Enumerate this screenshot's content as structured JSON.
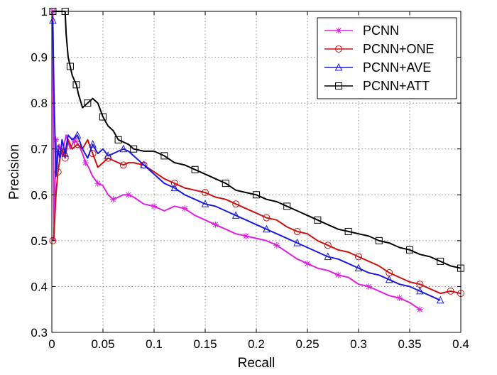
{
  "chart_data": {
    "type": "line",
    "title": "",
    "xlabel": "Recall",
    "ylabel": "Precision",
    "xlim": [
      0,
      0.4
    ],
    "ylim": [
      0.3,
      1.0
    ],
    "xticks": [
      0,
      0.05,
      0.1,
      0.15,
      0.2,
      0.25,
      0.3,
      0.35,
      0.4
    ],
    "xtick_labels": [
      "0",
      "0.05",
      "0.1",
      "0.15",
      "0.2",
      "0.25",
      "0.3",
      "0.35",
      "0.4"
    ],
    "yticks": [
      0.3,
      0.4,
      0.5,
      0.6,
      0.7,
      0.8,
      0.9,
      1.0
    ],
    "ytick_labels": [
      "0.3",
      "0.4",
      "0.5",
      "0.6",
      "0.7",
      "0.8",
      "0.9",
      "1"
    ],
    "grid": true,
    "legend_position": "top-right",
    "series": [
      {
        "name": "PCNN",
        "color": "#e020e0",
        "marker": "star",
        "points": [
          [
            0.001,
            1.0
          ],
          [
            0.002,
            0.5
          ],
          [
            0.003,
            0.6
          ],
          [
            0.004,
            0.72
          ],
          [
            0.005,
            0.66
          ],
          [
            0.007,
            0.71
          ],
          [
            0.01,
            0.69
          ],
          [
            0.014,
            0.73
          ],
          [
            0.018,
            0.7
          ],
          [
            0.022,
            0.72
          ],
          [
            0.026,
            0.71
          ],
          [
            0.03,
            0.69
          ],
          [
            0.033,
            0.67
          ],
          [
            0.036,
            0.66
          ],
          [
            0.04,
            0.64
          ],
          [
            0.045,
            0.625
          ],
          [
            0.05,
            0.62
          ],
          [
            0.055,
            0.6
          ],
          [
            0.06,
            0.59
          ],
          [
            0.065,
            0.595
          ],
          [
            0.07,
            0.6
          ],
          [
            0.075,
            0.6
          ],
          [
            0.08,
            0.595
          ],
          [
            0.09,
            0.58
          ],
          [
            0.1,
            0.575
          ],
          [
            0.11,
            0.565
          ],
          [
            0.12,
            0.575
          ],
          [
            0.13,
            0.57
          ],
          [
            0.14,
            0.555
          ],
          [
            0.15,
            0.545
          ],
          [
            0.16,
            0.535
          ],
          [
            0.17,
            0.525
          ],
          [
            0.18,
            0.515
          ],
          [
            0.19,
            0.51
          ],
          [
            0.2,
            0.505
          ],
          [
            0.21,
            0.5
          ],
          [
            0.22,
            0.49
          ],
          [
            0.23,
            0.475
          ],
          [
            0.24,
            0.46
          ],
          [
            0.25,
            0.45
          ],
          [
            0.26,
            0.44
          ],
          [
            0.27,
            0.435
          ],
          [
            0.28,
            0.425
          ],
          [
            0.29,
            0.42
          ],
          [
            0.3,
            0.405
          ],
          [
            0.31,
            0.4
          ],
          [
            0.32,
            0.39
          ],
          [
            0.33,
            0.38
          ],
          [
            0.34,
            0.375
          ],
          [
            0.35,
            0.365
          ],
          [
            0.36,
            0.35
          ]
        ]
      },
      {
        "name": "PCNN+ONE",
        "color": "#cc1111",
        "marker": "circle",
        "points": [
          [
            0.001,
            0.5
          ],
          [
            0.002,
            0.51
          ],
          [
            0.004,
            0.6
          ],
          [
            0.006,
            0.65
          ],
          [
            0.008,
            0.68
          ],
          [
            0.01,
            0.7
          ],
          [
            0.013,
            0.68
          ],
          [
            0.016,
            0.72
          ],
          [
            0.02,
            0.7
          ],
          [
            0.025,
            0.71
          ],
          [
            0.03,
            0.7
          ],
          [
            0.035,
            0.72
          ],
          [
            0.04,
            0.69
          ],
          [
            0.045,
            0.66
          ],
          [
            0.05,
            0.67
          ],
          [
            0.055,
            0.68
          ],
          [
            0.06,
            0.675
          ],
          [
            0.065,
            0.67
          ],
          [
            0.07,
            0.665
          ],
          [
            0.075,
            0.67
          ],
          [
            0.08,
            0.67
          ],
          [
            0.09,
            0.665
          ],
          [
            0.1,
            0.65
          ],
          [
            0.11,
            0.635
          ],
          [
            0.12,
            0.625
          ],
          [
            0.13,
            0.615
          ],
          [
            0.14,
            0.61
          ],
          [
            0.15,
            0.605
          ],
          [
            0.16,
            0.595
          ],
          [
            0.17,
            0.59
          ],
          [
            0.18,
            0.58
          ],
          [
            0.19,
            0.57
          ],
          [
            0.2,
            0.56
          ],
          [
            0.21,
            0.55
          ],
          [
            0.22,
            0.545
          ],
          [
            0.23,
            0.53
          ],
          [
            0.24,
            0.52
          ],
          [
            0.25,
            0.515
          ],
          [
            0.26,
            0.5
          ],
          [
            0.27,
            0.49
          ],
          [
            0.28,
            0.48
          ],
          [
            0.29,
            0.475
          ],
          [
            0.3,
            0.465
          ],
          [
            0.31,
            0.455
          ],
          [
            0.32,
            0.445
          ],
          [
            0.33,
            0.43
          ],
          [
            0.34,
            0.42
          ],
          [
            0.35,
            0.41
          ],
          [
            0.36,
            0.405
          ],
          [
            0.37,
            0.395
          ],
          [
            0.38,
            0.385
          ],
          [
            0.39,
            0.39
          ],
          [
            0.4,
            0.385
          ]
        ]
      },
      {
        "name": "PCNN+AVE",
        "color": "#1a1ae0",
        "marker": "triangle",
        "points": [
          [
            0.001,
            0.98
          ],
          [
            0.002,
            0.83
          ],
          [
            0.004,
            0.64
          ],
          [
            0.006,
            0.7
          ],
          [
            0.008,
            0.68
          ],
          [
            0.01,
            0.72
          ],
          [
            0.013,
            0.69
          ],
          [
            0.016,
            0.73
          ],
          [
            0.02,
            0.72
          ],
          [
            0.025,
            0.73
          ],
          [
            0.03,
            0.7
          ],
          [
            0.035,
            0.68
          ],
          [
            0.04,
            0.71
          ],
          [
            0.045,
            0.69
          ],
          [
            0.05,
            0.7
          ],
          [
            0.055,
            0.685
          ],
          [
            0.06,
            0.69
          ],
          [
            0.065,
            0.695
          ],
          [
            0.07,
            0.7
          ],
          [
            0.075,
            0.695
          ],
          [
            0.08,
            0.685
          ],
          [
            0.09,
            0.665
          ],
          [
            0.1,
            0.645
          ],
          [
            0.11,
            0.625
          ],
          [
            0.12,
            0.615
          ],
          [
            0.13,
            0.6
          ],
          [
            0.14,
            0.59
          ],
          [
            0.15,
            0.58
          ],
          [
            0.16,
            0.575
          ],
          [
            0.17,
            0.565
          ],
          [
            0.18,
            0.555
          ],
          [
            0.19,
            0.545
          ],
          [
            0.2,
            0.535
          ],
          [
            0.21,
            0.525
          ],
          [
            0.22,
            0.515
          ],
          [
            0.23,
            0.505
          ],
          [
            0.24,
            0.495
          ],
          [
            0.25,
            0.485
          ],
          [
            0.26,
            0.475
          ],
          [
            0.27,
            0.465
          ],
          [
            0.28,
            0.46
          ],
          [
            0.29,
            0.45
          ],
          [
            0.3,
            0.44
          ],
          [
            0.31,
            0.43
          ],
          [
            0.32,
            0.425
          ],
          [
            0.33,
            0.415
          ],
          [
            0.34,
            0.405
          ],
          [
            0.35,
            0.4
          ],
          [
            0.36,
            0.39
          ],
          [
            0.37,
            0.38
          ],
          [
            0.38,
            0.37
          ]
        ]
      },
      {
        "name": "PCNN+ATT",
        "color": "#000000",
        "marker": "square",
        "points": [
          [
            0.001,
            1.0
          ],
          [
            0.004,
            1.0
          ],
          [
            0.01,
            1.0
          ],
          [
            0.013,
            1.0
          ],
          [
            0.014,
            0.95
          ],
          [
            0.016,
            0.9
          ],
          [
            0.018,
            0.88
          ],
          [
            0.02,
            0.86
          ],
          [
            0.022,
            0.85
          ],
          [
            0.024,
            0.84
          ],
          [
            0.026,
            0.82
          ],
          [
            0.03,
            0.79
          ],
          [
            0.035,
            0.8
          ],
          [
            0.04,
            0.81
          ],
          [
            0.045,
            0.8
          ],
          [
            0.05,
            0.77
          ],
          [
            0.055,
            0.75
          ],
          [
            0.06,
            0.74
          ],
          [
            0.065,
            0.72
          ],
          [
            0.07,
            0.715
          ],
          [
            0.075,
            0.71
          ],
          [
            0.08,
            0.7
          ],
          [
            0.09,
            0.695
          ],
          [
            0.1,
            0.695
          ],
          [
            0.11,
            0.685
          ],
          [
            0.12,
            0.67
          ],
          [
            0.13,
            0.665
          ],
          [
            0.14,
            0.655
          ],
          [
            0.15,
            0.645
          ],
          [
            0.16,
            0.635
          ],
          [
            0.17,
            0.625
          ],
          [
            0.18,
            0.61
          ],
          [
            0.19,
            0.605
          ],
          [
            0.2,
            0.6
          ],
          [
            0.21,
            0.59
          ],
          [
            0.22,
            0.585
          ],
          [
            0.23,
            0.575
          ],
          [
            0.24,
            0.565
          ],
          [
            0.25,
            0.555
          ],
          [
            0.26,
            0.545
          ],
          [
            0.27,
            0.535
          ],
          [
            0.28,
            0.525
          ],
          [
            0.29,
            0.52
          ],
          [
            0.3,
            0.515
          ],
          [
            0.31,
            0.51
          ],
          [
            0.32,
            0.5
          ],
          [
            0.33,
            0.495
          ],
          [
            0.34,
            0.485
          ],
          [
            0.35,
            0.48
          ],
          [
            0.36,
            0.47
          ],
          [
            0.37,
            0.465
          ],
          [
            0.38,
            0.455
          ],
          [
            0.39,
            0.445
          ],
          [
            0.4,
            0.44
          ]
        ]
      }
    ]
  }
}
